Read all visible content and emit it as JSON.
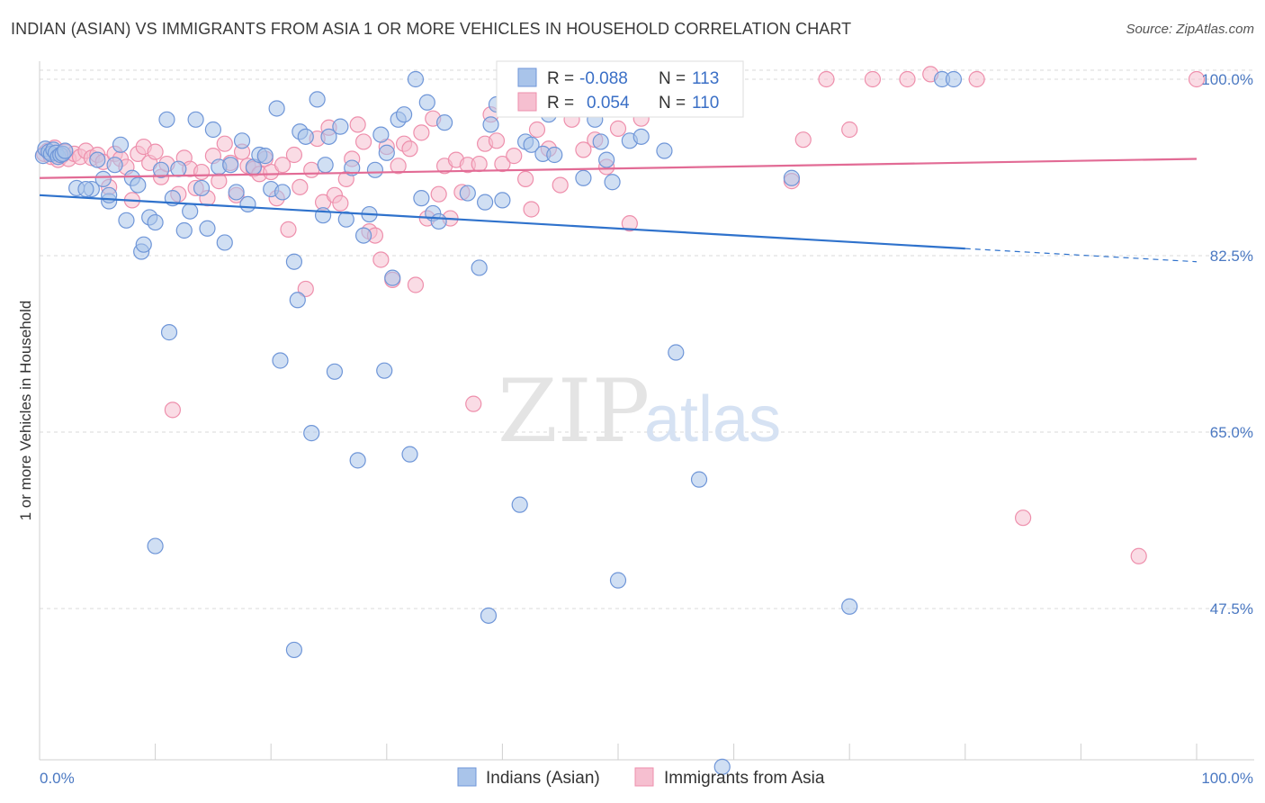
{
  "title": "INDIAN (ASIAN) VS IMMIGRANTS FROM ASIA 1 OR MORE VEHICLES IN HOUSEHOLD CORRELATION CHART",
  "source": "Source: ZipAtlas.com",
  "watermark": {
    "zip": "ZIP",
    "atlas": "atlas"
  },
  "legend": {
    "r_label": "R =",
    "n_label": "N =",
    "rows": [
      {
        "r": "-0.088",
        "n": "113"
      },
      {
        "r": "0.054",
        "n": "110"
      }
    ]
  },
  "colors": {
    "blue_fill": "#a9c4ea",
    "blue_stroke": "#6f96d8",
    "blue_line": "#2f72cc",
    "pink_fill": "#f6bfd0",
    "pink_stroke": "#ee8fac",
    "pink_line": "#e26b95",
    "tick_text": "#4a78c2",
    "grid": "#d9d9d9"
  },
  "chart_data": {
    "type": "scatter",
    "ylabel": "1 or more Vehicles in Household",
    "x_tick_labels": [
      "0.0%",
      "100.0%"
    ],
    "y_tick_labels": [
      "100.0%",
      "82.5%",
      "65.0%",
      "47.5%"
    ],
    "xlim": [
      0,
      100
    ],
    "ylim": [
      32.5,
      102.5
    ],
    "y_ticks": [
      100,
      82.5,
      65,
      47.5
    ],
    "grid": true,
    "legend_position": "top-center",
    "series": [
      {
        "name": "Indians (Asian)",
        "trend": {
          "x0": 0,
          "y0": 88.5,
          "x1": 80,
          "y1": 83.2,
          "dashed_to": 100,
          "dashed_y": 81.9
        },
        "points": [
          [
            0.3,
            92.4
          ],
          [
            0.5,
            93.1
          ],
          [
            0.8,
            92.8
          ],
          [
            1.0,
            92.6
          ],
          [
            1.2,
            93.0
          ],
          [
            1.4,
            92.7
          ],
          [
            1.6,
            92.3
          ],
          [
            1.8,
            92.5
          ],
          [
            2.0,
            92.6
          ],
          [
            2.2,
            92.9
          ],
          [
            3.2,
            89.2
          ],
          [
            4.5,
            89.1
          ],
          [
            5.0,
            92.0
          ],
          [
            5.5,
            90.1
          ],
          [
            6.0,
            87.9
          ],
          [
            6.5,
            91.5
          ],
          [
            7.5,
            86.0
          ],
          [
            8.0,
            90.2
          ],
          [
            8.5,
            89.5
          ],
          [
            8.8,
            82.9
          ],
          [
            9.0,
            83.6
          ],
          [
            9.5,
            86.3
          ],
          [
            10.0,
            85.8
          ],
          [
            10.5,
            91.0
          ],
          [
            11.0,
            96.0
          ],
          [
            11.2,
            74.9
          ],
          [
            11.5,
            88.2
          ],
          [
            12.0,
            91.1
          ],
          [
            12.5,
            85.0
          ],
          [
            13.0,
            86.9
          ],
          [
            13.5,
            96.0
          ],
          [
            14.0,
            89.2
          ],
          [
            14.5,
            85.2
          ],
          [
            15.0,
            95.0
          ],
          [
            15.5,
            91.3
          ],
          [
            16.0,
            83.8
          ],
          [
            16.5,
            91.5
          ],
          [
            17.0,
            88.8
          ],
          [
            17.5,
            93.9
          ],
          [
            18.0,
            87.6
          ],
          [
            18.5,
            91.3
          ],
          [
            19.0,
            92.5
          ],
          [
            19.5,
            92.4
          ],
          [
            20.0,
            89.1
          ],
          [
            20.5,
            97.1
          ],
          [
            20.8,
            72.1
          ],
          [
            21.0,
            88.8
          ],
          [
            22.0,
            81.9
          ],
          [
            22.3,
            78.1
          ],
          [
            22.5,
            94.8
          ],
          [
            23.0,
            94.3
          ],
          [
            23.5,
            64.9
          ],
          [
            24.0,
            98.0
          ],
          [
            24.5,
            86.5
          ],
          [
            24.7,
            91.5
          ],
          [
            25.0,
            94.3
          ],
          [
            25.5,
            71.0
          ],
          [
            26.0,
            95.3
          ],
          [
            26.5,
            86.1
          ],
          [
            27.0,
            91.2
          ],
          [
            27.5,
            62.2
          ],
          [
            28.0,
            84.5
          ],
          [
            28.5,
            86.6
          ],
          [
            29.0,
            91.0
          ],
          [
            29.5,
            94.5
          ],
          [
            29.8,
            71.1
          ],
          [
            30.0,
            92.7
          ],
          [
            30.5,
            80.3
          ],
          [
            31.0,
            96.0
          ],
          [
            31.5,
            96.5
          ],
          [
            32.0,
            62.8
          ],
          [
            32.5,
            100.0
          ],
          [
            33.0,
            88.2
          ],
          [
            33.5,
            97.7
          ],
          [
            34.0,
            86.7
          ],
          [
            34.5,
            85.9
          ],
          [
            35.0,
            95.7
          ],
          [
            37.0,
            88.7
          ],
          [
            38.0,
            81.3
          ],
          [
            38.5,
            87.8
          ],
          [
            38.8,
            46.8
          ],
          [
            39.0,
            95.5
          ],
          [
            39.5,
            97.5
          ],
          [
            40.0,
            88.0
          ],
          [
            41.5,
            57.8
          ],
          [
            42.0,
            93.8
          ],
          [
            42.5,
            93.5
          ],
          [
            43.0,
            97.5
          ],
          [
            43.5,
            92.6
          ],
          [
            44.0,
            96.5
          ],
          [
            44.5,
            92.5
          ],
          [
            45.0,
            100.5
          ],
          [
            46.0,
            100.0
          ],
          [
            47.0,
            90.2
          ],
          [
            48.0,
            96.0
          ],
          [
            48.5,
            93.8
          ],
          [
            49.0,
            92.0
          ],
          [
            49.5,
            89.8
          ],
          [
            50.0,
            50.3
          ],
          [
            51.0,
            93.9
          ],
          [
            52.0,
            94.3
          ],
          [
            53.0,
            100.0
          ],
          [
            54.0,
            92.9
          ],
          [
            55.0,
            72.9
          ],
          [
            55.5,
            99.5
          ],
          [
            56.0,
            100.0
          ],
          [
            57.0,
            60.3
          ],
          [
            59.0,
            31.8
          ],
          [
            65.0,
            90.2
          ],
          [
            70.0,
            47.7
          ],
          [
            78.0,
            100.0
          ],
          [
            79.0,
            100.0
          ],
          [
            4.0,
            89.1
          ],
          [
            6.0,
            88.5
          ],
          [
            7.0,
            93.5
          ],
          [
            10.0,
            53.7
          ],
          [
            22.0,
            43.4
          ]
        ]
      },
      {
        "name": "Immigrants from Asia",
        "trend": {
          "x0": 0,
          "y0": 90.2,
          "x1": 100,
          "y1": 92.1
        },
        "points": [
          [
            0.4,
            92.6
          ],
          [
            0.7,
            92.9
          ],
          [
            1.0,
            92.3
          ],
          [
            1.3,
            93.2
          ],
          [
            1.6,
            92.0
          ],
          [
            1.9,
            92.4
          ],
          [
            2.2,
            92.8
          ],
          [
            2.5,
            92.1
          ],
          [
            3.0,
            92.6
          ],
          [
            3.5,
            92.3
          ],
          [
            4.0,
            92.9
          ],
          [
            4.5,
            92.2
          ],
          [
            5.0,
            92.5
          ],
          [
            5.5,
            91.8
          ],
          [
            6.0,
            89.3
          ],
          [
            6.5,
            92.6
          ],
          [
            7.0,
            92.1
          ],
          [
            7.5,
            91.3
          ],
          [
            8.0,
            88.0
          ],
          [
            8.5,
            92.6
          ],
          [
            9.0,
            93.3
          ],
          [
            9.5,
            91.7
          ],
          [
            10.0,
            92.8
          ],
          [
            10.5,
            90.3
          ],
          [
            11.0,
            91.6
          ],
          [
            11.5,
            67.2
          ],
          [
            12.0,
            88.6
          ],
          [
            12.5,
            92.2
          ],
          [
            13.0,
            91.1
          ],
          [
            13.5,
            89.2
          ],
          [
            14.0,
            90.8
          ],
          [
            14.5,
            88.2
          ],
          [
            15.0,
            92.4
          ],
          [
            15.5,
            89.9
          ],
          [
            16.0,
            93.6
          ],
          [
            16.5,
            91.7
          ],
          [
            17.0,
            88.5
          ],
          [
            17.5,
            92.8
          ],
          [
            18.0,
            91.4
          ],
          [
            18.5,
            91.1
          ],
          [
            19.0,
            90.6
          ],
          [
            19.5,
            92.1
          ],
          [
            20.0,
            90.8
          ],
          [
            20.5,
            88.2
          ],
          [
            21.0,
            91.5
          ],
          [
            21.5,
            85.1
          ],
          [
            22.0,
            92.5
          ],
          [
            22.5,
            89.3
          ],
          [
            23.0,
            79.2
          ],
          [
            23.5,
            91.0
          ],
          [
            24.0,
            94.1
          ],
          [
            24.5,
            87.8
          ],
          [
            25.0,
            95.2
          ],
          [
            25.5,
            88.5
          ],
          [
            26.0,
            87.7
          ],
          [
            26.5,
            90.1
          ],
          [
            27.0,
            92.1
          ],
          [
            27.5,
            95.5
          ],
          [
            28.0,
            93.8
          ],
          [
            28.5,
            84.9
          ],
          [
            29.0,
            84.5
          ],
          [
            29.5,
            82.1
          ],
          [
            30.0,
            93.3
          ],
          [
            30.5,
            80.1
          ],
          [
            31.0,
            91.4
          ],
          [
            31.5,
            93.6
          ],
          [
            32.0,
            93.1
          ],
          [
            32.5,
            79.6
          ],
          [
            33.0,
            94.7
          ],
          [
            33.5,
            86.2
          ],
          [
            34.0,
            96.1
          ],
          [
            34.5,
            88.6
          ],
          [
            35.0,
            91.4
          ],
          [
            35.5,
            86.2
          ],
          [
            36.0,
            92.0
          ],
          [
            36.5,
            88.8
          ],
          [
            37.0,
            91.5
          ],
          [
            37.5,
            67.8
          ],
          [
            38.0,
            91.6
          ],
          [
            38.5,
            93.6
          ],
          [
            39.0,
            96.5
          ],
          [
            39.5,
            93.9
          ],
          [
            40.0,
            91.6
          ],
          [
            41.0,
            92.4
          ],
          [
            42.0,
            90.1
          ],
          [
            42.5,
            87.1
          ],
          [
            43.0,
            95.0
          ],
          [
            44.0,
            93.1
          ],
          [
            45.0,
            89.5
          ],
          [
            46.0,
            96.0
          ],
          [
            47.0,
            93.0
          ],
          [
            48.0,
            94.0
          ],
          [
            49.0,
            91.3
          ],
          [
            50.0,
            95.1
          ],
          [
            51.0,
            85.7
          ],
          [
            52.0,
            96.1
          ],
          [
            53.0,
            100.0
          ],
          [
            55.0,
            100.0
          ],
          [
            60.0,
            100.0
          ],
          [
            65.0,
            89.9
          ],
          [
            66.0,
            94.0
          ],
          [
            68.0,
            100.0
          ],
          [
            70.0,
            95.0
          ],
          [
            72.0,
            100.0
          ],
          [
            75.0,
            100.0
          ],
          [
            77.0,
            100.5
          ],
          [
            81.0,
            100.0
          ],
          [
            85.0,
            56.5
          ],
          [
            95.0,
            52.7
          ],
          [
            100.0,
            100.0
          ]
        ]
      }
    ]
  },
  "bottom_legend": [
    "Indians (Asian)",
    "Immigrants from Asia"
  ]
}
